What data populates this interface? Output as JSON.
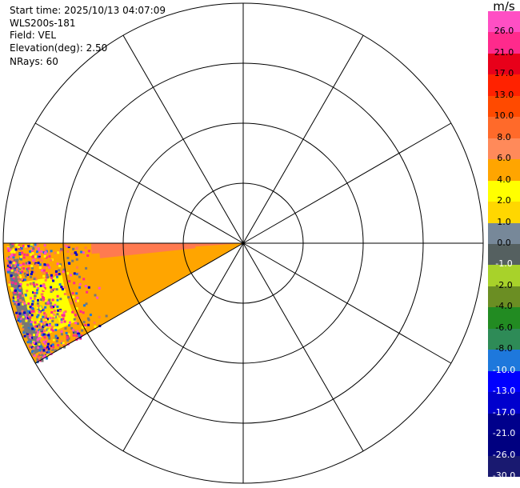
{
  "header": {
    "start_time": "Start time: 2025/10/13 04:07:09",
    "instrument": "WLS200s-181",
    "field": "Field: VEL",
    "elevation": "Elevation(deg): 2.50",
    "nrays": "NRays: 60"
  },
  "colorbar": {
    "unit": "m/s",
    "labels": [
      "26.0",
      "21.0",
      "17.0",
      "13.0",
      "10.0",
      "8.0",
      "6.0",
      "4.0",
      "2.0",
      "1.0",
      "0.0",
      "-1.0",
      "-2.0",
      "-4.0",
      "-6.0",
      "-8.0",
      "-10.0",
      "-13.0",
      "-17.0",
      "-21.0",
      "-26.0",
      "-30.0"
    ],
    "colors": [
      "#ff4fc4",
      "#ff2a8c",
      "#e8001a",
      "#ff2200",
      "#ff4a00",
      "#ff6a2a",
      "#ff8a5a",
      "#ffa500",
      "#ffff00",
      "#ffd700",
      "#778899",
      "#556060",
      "#a8d22a",
      "#6b8e23",
      "#228b22",
      "#2e8b57",
      "#1e78dc",
      "#0000ff",
      "#0000cd",
      "#00008b",
      "#000080",
      "#191970"
    ]
  },
  "ppi": {
    "rings": 4,
    "spokes_deg": 30,
    "sector_start_deg": 240,
    "sector_end_deg": 270,
    "background_color": "#ffa500",
    "streak_color": "#ff7a50",
    "noise_colors": [
      "#ff2a8c",
      "#0000cd",
      "#ffff00",
      "#ff4fc4",
      "#ff7a50",
      "#777777",
      "#1e78dc"
    ]
  }
}
